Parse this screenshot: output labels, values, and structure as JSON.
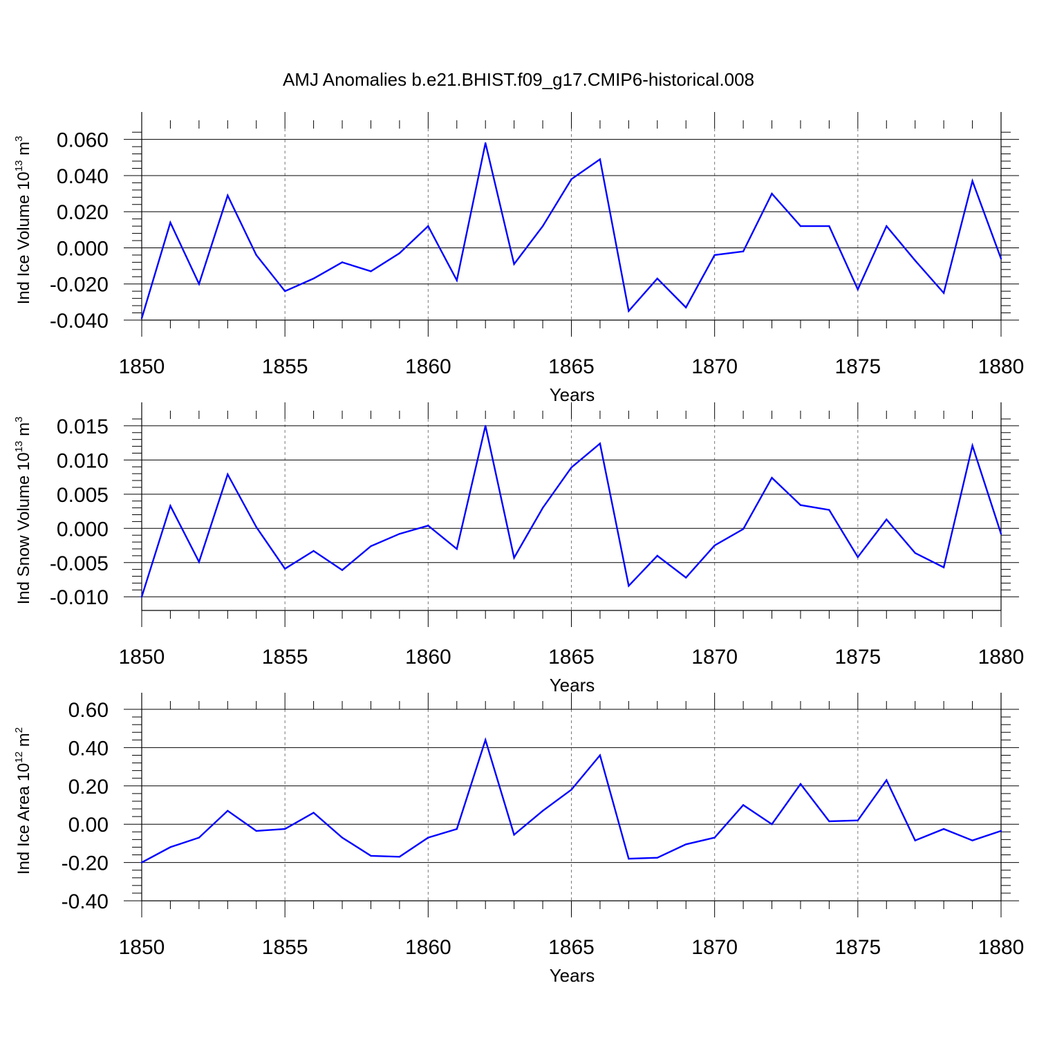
{
  "title": "AMJ Anomalies b.e21.BHIST.f09_g17.CMIP6-historical.008",
  "line_color": "#0000ff",
  "chart_data": [
    {
      "type": "line",
      "ylabel_main": "Ind Ice Volume 10",
      "ylabel_exp": "13",
      "ylabel_unit": " m",
      "ylabel_unit_exp": "3",
      "xlabel": "Years",
      "xlim": [
        1850,
        1880
      ],
      "ylim": [
        -0.04,
        0.066
      ],
      "yticks": [
        -0.04,
        -0.02,
        0.0,
        0.02,
        0.04,
        0.06
      ],
      "ytick_labels": [
        "-0.040",
        "-0.020",
        "0.000",
        "0.020",
        "0.040",
        "0.060"
      ],
      "xticks": [
        1850,
        1855,
        1860,
        1865,
        1870,
        1875,
        1880
      ],
      "xtick_labels": [
        "1850",
        "1855",
        "1860",
        "1865",
        "1870",
        "1875",
        "1880"
      ],
      "x": [
        1850,
        1851,
        1852,
        1853,
        1854,
        1855,
        1856,
        1857,
        1858,
        1859,
        1860,
        1861,
        1862,
        1863,
        1864,
        1865,
        1866,
        1867,
        1868,
        1869,
        1870,
        1871,
        1872,
        1873,
        1874,
        1875,
        1876,
        1877,
        1878,
        1879,
        1880
      ],
      "values": [
        -0.039,
        0.014,
        -0.02,
        0.029,
        -0.004,
        -0.024,
        -0.017,
        -0.008,
        -0.013,
        -0.003,
        0.012,
        -0.018,
        0.058,
        -0.009,
        0.012,
        0.038,
        0.049,
        -0.035,
        -0.017,
        -0.033,
        -0.004,
        -0.002,
        0.03,
        0.012,
        0.012,
        -0.023,
        0.012,
        -0.007,
        -0.025,
        0.037,
        -0.006
      ]
    },
    {
      "type": "line",
      "ylabel_main": "Ind Snow Volume 10",
      "ylabel_exp": "13",
      "ylabel_unit": " m",
      "ylabel_unit_exp": "3",
      "xlabel": "Years",
      "xlim": [
        1850,
        1880
      ],
      "ylim": [
        -0.012,
        0.016
      ],
      "yticks": [
        -0.01,
        -0.005,
        0.0,
        0.005,
        0.01,
        0.015
      ],
      "ytick_labels": [
        "-0.010",
        "-0.005",
        "0.000",
        "0.005",
        "0.010",
        "0.015"
      ],
      "xticks": [
        1850,
        1855,
        1860,
        1865,
        1870,
        1875,
        1880
      ],
      "xtick_labels": [
        "1850",
        "1855",
        "1860",
        "1865",
        "1870",
        "1875",
        "1880"
      ],
      "x": [
        1850,
        1851,
        1852,
        1853,
        1854,
        1855,
        1856,
        1857,
        1858,
        1859,
        1860,
        1861,
        1862,
        1863,
        1864,
        1865,
        1866,
        1867,
        1868,
        1869,
        1870,
        1871,
        1872,
        1873,
        1874,
        1875,
        1876,
        1877,
        1878,
        1879,
        1880
      ],
      "values": [
        -0.01,
        0.0033,
        -0.0049,
        0.0079,
        0.0002,
        -0.0059,
        -0.0033,
        -0.0061,
        -0.0026,
        -0.0008,
        0.0004,
        -0.003,
        0.015,
        -0.0043,
        0.003,
        0.0089,
        0.0124,
        -0.0084,
        -0.004,
        -0.0072,
        -0.0025,
        -0.0001,
        0.0074,
        0.0034,
        0.0027,
        -0.0042,
        0.0013,
        -0.0036,
        -0.0057,
        0.0121,
        -0.0008
      ]
    },
    {
      "type": "line",
      "ylabel_main": "Ind Ice Area 10",
      "ylabel_exp": "12",
      "ylabel_unit": " m",
      "ylabel_unit_exp": "2",
      "xlabel": "Years",
      "xlim": [
        1850,
        1880
      ],
      "ylim": [
        -0.4,
        0.6
      ],
      "yticks": [
        -0.4,
        -0.2,
        0.0,
        0.2,
        0.4,
        0.6
      ],
      "ytick_labels": [
        "-0.40",
        "-0.20",
        "0.00",
        "0.20",
        "0.40",
        "0.60"
      ],
      "xticks": [
        1850,
        1855,
        1860,
        1865,
        1870,
        1875,
        1880
      ],
      "xtick_labels": [
        "1850",
        "1855",
        "1860",
        "1865",
        "1870",
        "1875",
        "1880"
      ],
      "x": [
        1850,
        1851,
        1852,
        1853,
        1854,
        1855,
        1856,
        1857,
        1858,
        1859,
        1860,
        1861,
        1862,
        1863,
        1864,
        1865,
        1866,
        1867,
        1868,
        1869,
        1870,
        1871,
        1872,
        1873,
        1874,
        1875,
        1876,
        1877,
        1878,
        1879,
        1880
      ],
      "values": [
        -0.2,
        -0.12,
        -0.07,
        0.07,
        -0.035,
        -0.025,
        0.06,
        -0.07,
        -0.165,
        -0.17,
        -0.07,
        -0.025,
        0.44,
        -0.055,
        0.07,
        0.18,
        0.36,
        -0.18,
        -0.175,
        -0.105,
        -0.07,
        0.1,
        0.0,
        0.21,
        0.015,
        0.02,
        0.23,
        -0.085,
        -0.025,
        -0.085,
        -0.035
      ]
    }
  ]
}
